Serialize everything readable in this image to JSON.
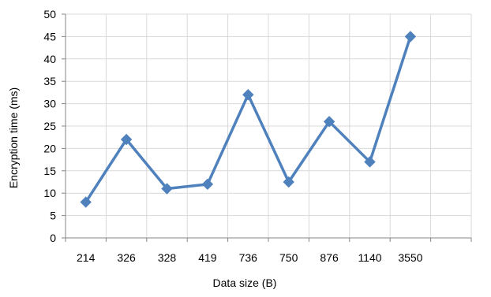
{
  "chart_data": {
    "type": "line",
    "categories": [
      "214",
      "326",
      "328",
      "419",
      "736",
      "750",
      "876",
      "1140",
      "3550"
    ],
    "series": [
      {
        "values": [
          8,
          22,
          11,
          12,
          32,
          12.5,
          26,
          17,
          45
        ],
        "color": "#4f81bd",
        "marker": "diamond"
      }
    ],
    "xlabel": "Data size (B)",
    "ylabel": "Encryption time (ms)",
    "ylim": [
      0,
      50
    ],
    "yticks": [
      0,
      5,
      10,
      15,
      20,
      25,
      30,
      35,
      40,
      45,
      50
    ],
    "grid": true,
    "legend": "none"
  }
}
